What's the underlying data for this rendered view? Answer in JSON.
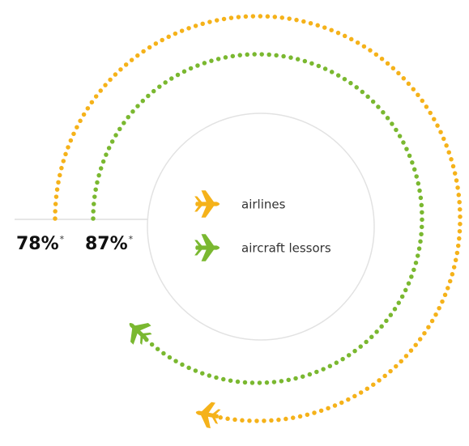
{
  "chart_data": {
    "type": "radial",
    "ylim": [
      0,
      100
    ],
    "footnote_marker": "*",
    "series": [
      {
        "name": "airlines",
        "color": "#f5b21a",
        "value": 78,
        "value_label": "78%"
      },
      {
        "name": "aircraft lessors",
        "color": "#7ab830",
        "value": 87,
        "value_label": "87%"
      }
    ]
  }
}
